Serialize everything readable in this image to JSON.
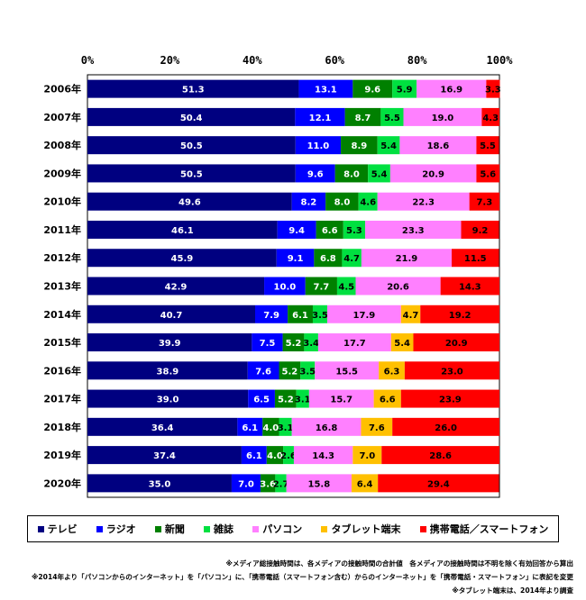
{
  "chart_data": {
    "type": "bar",
    "orientation": "horizontal",
    "stacked": true,
    "percent": true,
    "xlim": [
      0,
      100
    ],
    "x_ticks": [
      "0%",
      "20%",
      "40%",
      "60%",
      "80%",
      "100%"
    ],
    "categories": [
      "2006年",
      "2007年",
      "2008年",
      "2009年",
      "2010年",
      "2011年",
      "2012年",
      "2013年",
      "2014年",
      "2015年",
      "2016年",
      "2017年",
      "2018年",
      "2019年",
      "2020年"
    ],
    "series": [
      {
        "name": "テレビ",
        "color": "#000080",
        "label_color": "#ffffff",
        "values": [
          51.3,
          50.4,
          50.5,
          50.5,
          49.6,
          46.1,
          45.9,
          42.9,
          40.7,
          39.9,
          38.9,
          39.0,
          36.4,
          37.4,
          35.0
        ]
      },
      {
        "name": "ラジオ",
        "color": "#0000ff",
        "label_color": "#ffffff",
        "values": [
          13.1,
          12.1,
          11.0,
          9.6,
          8.2,
          9.4,
          9.1,
          10.0,
          7.9,
          7.5,
          7.6,
          6.5,
          6.1,
          6.1,
          7.0
        ]
      },
      {
        "name": "新聞",
        "color": "#008000",
        "label_color": "#ffffff",
        "values": [
          9.6,
          8.7,
          8.9,
          8.0,
          8.0,
          6.6,
          6.8,
          7.7,
          6.1,
          5.2,
          5.2,
          5.2,
          4.0,
          4.0,
          3.6
        ]
      },
      {
        "name": "雑誌",
        "color": "#00e040",
        "label_color": "#000000",
        "values": [
          5.9,
          5.5,
          5.4,
          5.4,
          4.6,
          5.3,
          4.7,
          4.5,
          3.5,
          3.4,
          3.5,
          3.1,
          3.1,
          2.6,
          2.7
        ]
      },
      {
        "name": "パソコン",
        "color": "#ff80ff",
        "label_color": "#000000",
        "values": [
          16.9,
          19.0,
          18.6,
          20.9,
          22.3,
          23.3,
          21.9,
          20.6,
          17.9,
          17.7,
          15.5,
          15.7,
          16.8,
          14.3,
          15.8
        ]
      },
      {
        "name": "タブレット端末",
        "color": "#ffc000",
        "label_color": "#000000",
        "values": [
          null,
          null,
          null,
          null,
          null,
          null,
          null,
          null,
          4.7,
          5.4,
          6.3,
          6.6,
          7.6,
          7.0,
          6.4
        ]
      },
      {
        "name": "携帯電話／スマートフォン",
        "color": "#ff0000",
        "label_color": "#000000",
        "values": [
          3.3,
          4.3,
          5.5,
          5.6,
          7.3,
          9.2,
          11.5,
          14.3,
          19.2,
          20.9,
          23.0,
          23.9,
          26.0,
          28.6,
          29.4
        ]
      }
    ],
    "legend_position": "bottom"
  },
  "notes": [
    "※メディア総接触時間は、各メディアの接触時間の合計値　各メディアの接触時間は不明を除く有効回答から算出",
    "※2014年より「パソコンからのインターネット」を「パソコン」に、「携帯電話（スマートフォン含む）からのインターネット」を「携帯電話・スマートフォン」に表記を変更",
    "※タブレット端末は、2014年より調査"
  ]
}
